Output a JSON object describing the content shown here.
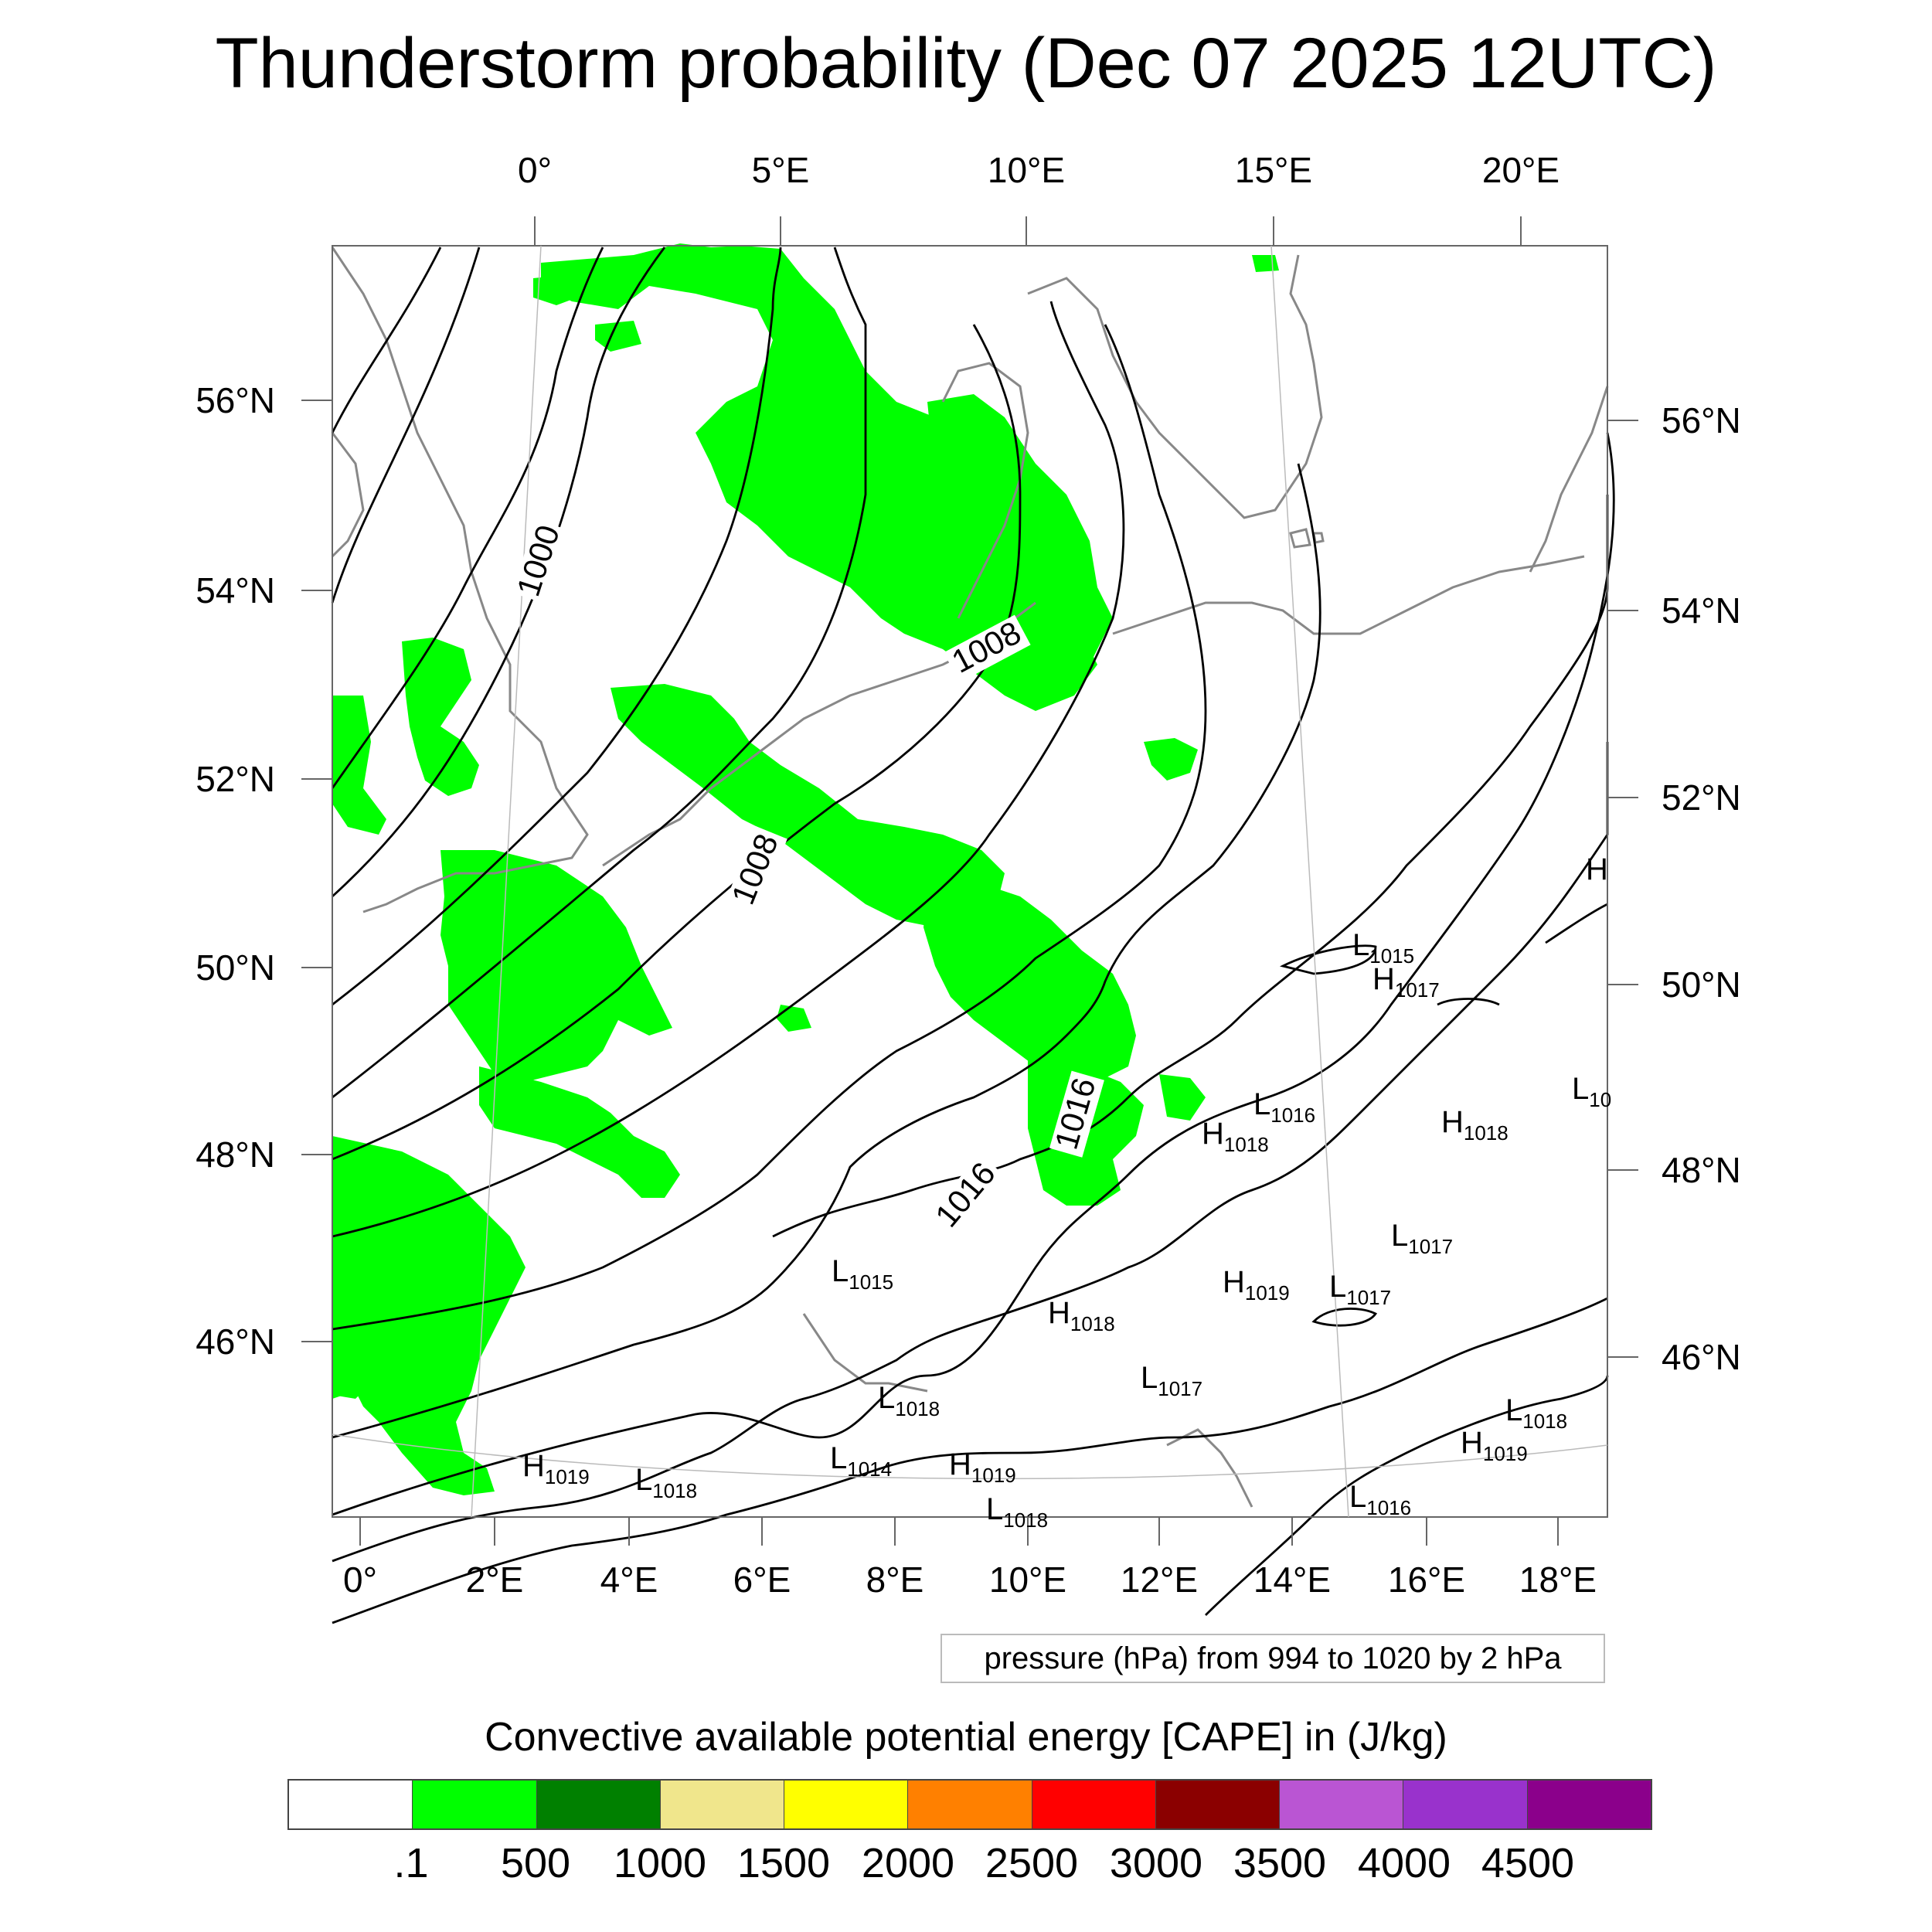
{
  "title": "Thunderstorm probability (Dec 07 2025 12UTC)",
  "axes": {
    "top_lon": [
      "0°",
      "5°E",
      "10°E",
      "15°E",
      "20°E"
    ],
    "bottom_lon": [
      "0°",
      "2°E",
      "4°E",
      "6°E",
      "8°E",
      "10°E",
      "12°E",
      "14°E",
      "16°E",
      "18°E"
    ],
    "left_lat": [
      "56°N",
      "54°N",
      "52°N",
      "50°N",
      "48°N",
      "46°N"
    ],
    "right_lat": [
      "56°N",
      "54°N",
      "52°N",
      "50°N",
      "48°N",
      "46°N"
    ]
  },
  "contour_labels": [
    "1000",
    "1008",
    "1008",
    "1016",
    "1016"
  ],
  "pressure_centers": [
    {
      "type": "L",
      "value": "1015"
    },
    {
      "type": "H",
      "value": "1017"
    },
    {
      "type": "L",
      "value": "1016"
    },
    {
      "type": "H",
      "value": "1018"
    },
    {
      "type": "H",
      "value": "1018"
    },
    {
      "type": "L",
      "value": "1017"
    },
    {
      "type": "H",
      "value": "1019"
    },
    {
      "type": "L",
      "value": "1017"
    },
    {
      "type": "L",
      "value": "1015"
    },
    {
      "type": "H",
      "value": "1018"
    },
    {
      "type": "L",
      "value": "1017"
    },
    {
      "type": "L",
      "value": "1018"
    },
    {
      "type": "L",
      "value": "1014"
    },
    {
      "type": "H",
      "value": "1019"
    },
    {
      "type": "H",
      "value": "1019"
    },
    {
      "type": "L",
      "value": "1018"
    },
    {
      "type": "H",
      "value": "1019"
    },
    {
      "type": "L",
      "value": "1018"
    },
    {
      "type": "L",
      "value": "1016"
    },
    {
      "type": "L",
      "value": "1018"
    },
    {
      "type": "H",
      "value": ""
    },
    {
      "type": "L",
      "value": "10"
    }
  ],
  "pressure_note": "pressure (hPa) from 994 to 1020 by 2 hPa",
  "colorbar": {
    "title": "Convective available potential energy [CAPE] in (J/kg)",
    "colors": [
      "#ffffff",
      "#00ff00",
      "#008000",
      "#f0e68c",
      "#ffff00",
      "#ff8000",
      "#ff0000",
      "#8b0000",
      "#ba55d3",
      "#9932cc",
      "#8b008b"
    ],
    "labels": [
      ".1",
      "500",
      "1000",
      "1500",
      "2000",
      "2500",
      "3000",
      "3500",
      "4000",
      "4500"
    ]
  },
  "colors": {
    "cape_low": "#00ff00",
    "coast": "#888888",
    "isobar": "#000000"
  }
}
